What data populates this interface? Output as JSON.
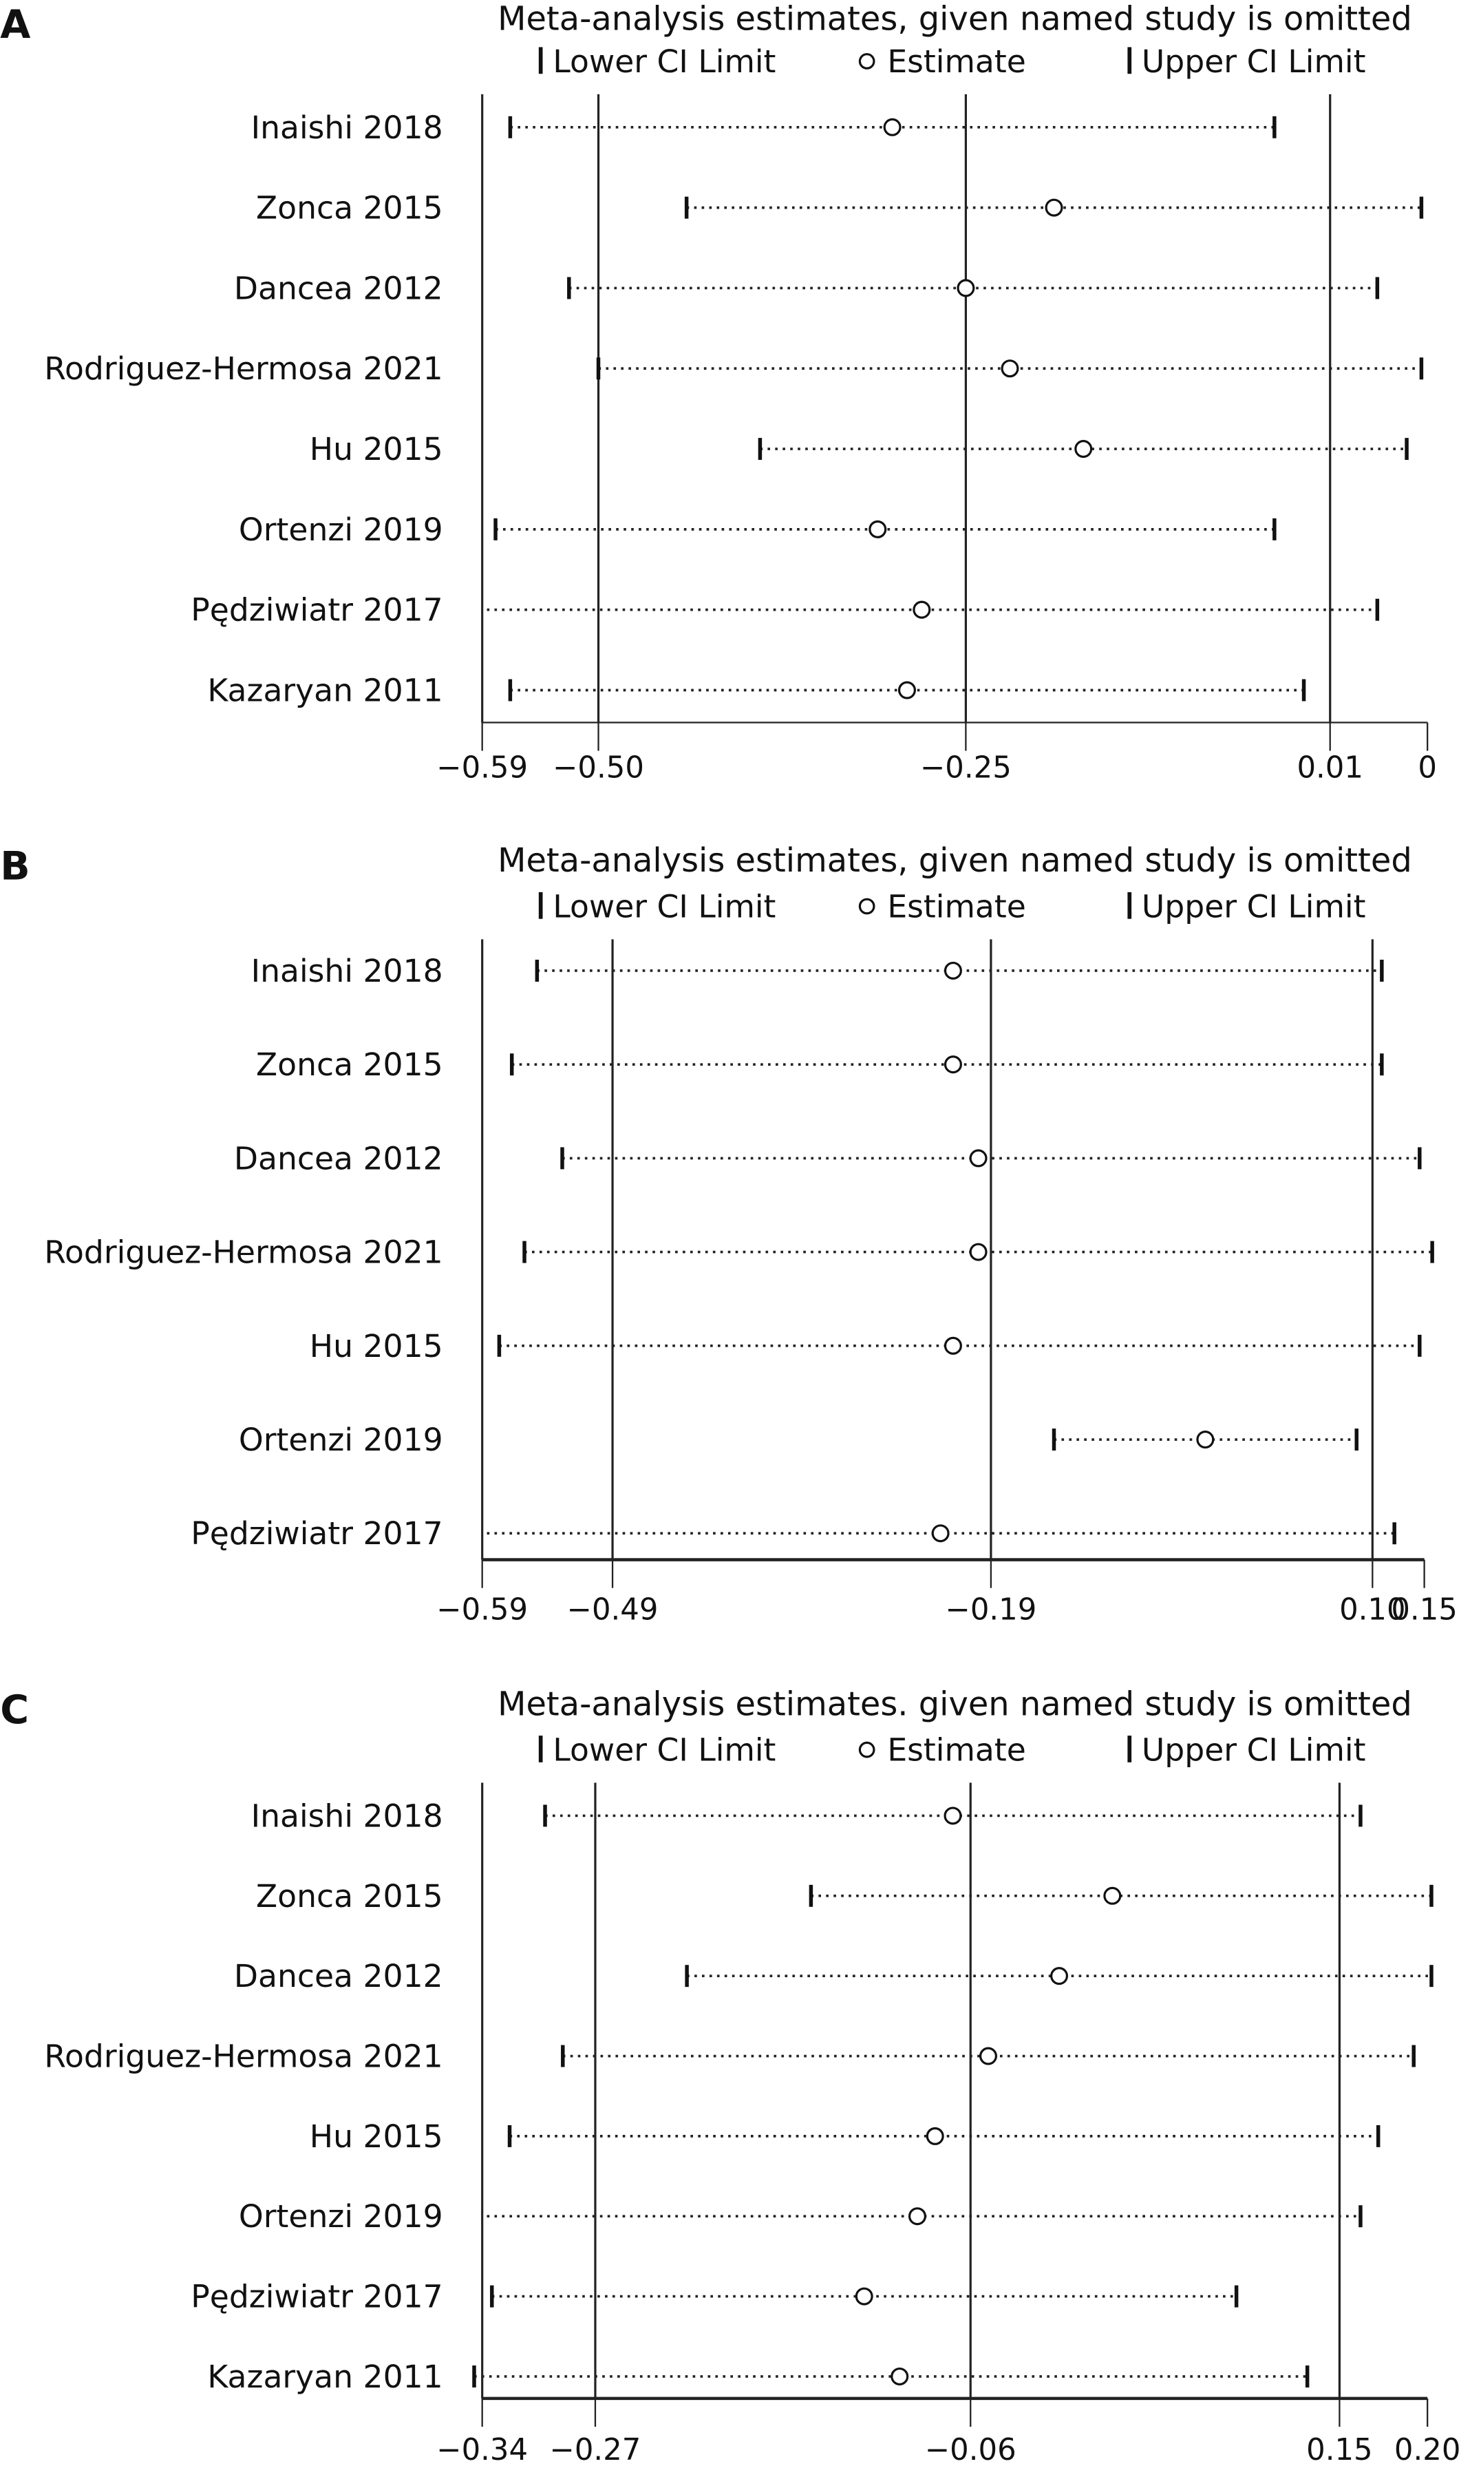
{
  "chart_data": [
    {
      "type": "scatter",
      "panel": "A",
      "title": "Meta-analysis estimates, given named study is omitted",
      "legend": {
        "lower": "Lower CI Limit",
        "estimate": "Estimate",
        "upper": "Upper CI Limit"
      },
      "tick_labels": [
        "−0.59",
        "−0.50",
        "−0.25",
        "0.01",
        "0"
      ],
      "reference_lines": [
        -0.5,
        -0.25,
        0.01
      ],
      "studies": [
        {
          "name": "Inaishi 2018",
          "lower": -0.56,
          "estimate": -0.3,
          "upper": -0.04
        },
        {
          "name": "Zonca 2015",
          "lower": -0.44,
          "estimate": -0.19,
          "upper": 0.06
        },
        {
          "name": "Dancea 2012",
          "lower": -0.52,
          "estimate": -0.25,
          "upper": 0.03
        },
        {
          "name": "Rodriguez-Hermosa 2021",
          "lower": -0.5,
          "estimate": -0.22,
          "upper": 0.06
        },
        {
          "name": "Hu 2015",
          "lower": -0.39,
          "estimate": -0.17,
          "upper": 0.05
        },
        {
          "name": "Ortenzi 2019",
          "lower": -0.57,
          "estimate": -0.31,
          "upper": -0.04
        },
        {
          "name": "Pędziwiatr 2017",
          "lower": null,
          "estimate": -0.28,
          "upper": 0.03
        },
        {
          "name": "Kazaryan 2011",
          "lower": -0.56,
          "estimate": -0.29,
          "upper": -0.02
        }
      ]
    },
    {
      "type": "scatter",
      "panel": "B",
      "title": "Meta-analysis estimates, given named study is omitted",
      "legend": {
        "lower": "Lower CI Limit",
        "estimate": "Estimate",
        "upper": "Upper CI Limit"
      },
      "tick_labels": [
        "−0.59",
        "−0.49",
        "−0.19",
        "0.10",
        "0.15"
      ],
      "reference_lines": [
        -0.49,
        -0.19,
        0.1
      ],
      "studies": [
        {
          "name": "Inaishi 2018",
          "lower": -0.55,
          "estimate": -0.22,
          "upper": 0.12
        },
        {
          "name": "Zonca 2015",
          "lower": -0.57,
          "estimate": -0.22,
          "upper": 0.12
        },
        {
          "name": "Dancea 2012",
          "lower": -0.53,
          "estimate": -0.2,
          "upper": 0.15
        },
        {
          "name": "Rodriguez-Hermosa 2021",
          "lower": -0.56,
          "estimate": -0.2,
          "upper": 0.16
        },
        {
          "name": "Hu 2015",
          "lower": -0.58,
          "estimate": -0.22,
          "upper": 0.15
        },
        {
          "name": "Ortenzi 2019",
          "lower": -0.14,
          "estimate": -0.02,
          "upper": 0.1
        },
        {
          "name": "Pędziwiatr 2017",
          "lower": null,
          "estimate": -0.23,
          "upper": 0.13
        }
      ]
    },
    {
      "type": "scatter",
      "panel": "C",
      "title": "Meta-analysis estimates. given named study is omitted",
      "legend": {
        "lower": "Lower CI Limit",
        "estimate": "Estimate",
        "upper": "Upper CI Limit"
      },
      "tick_labels": [
        "−0.34",
        "−0.27",
        "−0.06",
        "0.15",
        "0.20"
      ],
      "reference_lines": [
        -0.27,
        -0.06,
        0.15
      ],
      "studies": [
        {
          "name": "Inaishi 2018",
          "lower": -0.3,
          "estimate": -0.07,
          "upper": 0.16
        },
        {
          "name": "Zonca 2015",
          "lower": -0.15,
          "estimate": 0.02,
          "upper": 0.2
        },
        {
          "name": "Dancea 2012",
          "lower": -0.22,
          "estimate": -0.01,
          "upper": 0.2
        },
        {
          "name": "Rodriguez-Hermosa 2021",
          "lower": -0.29,
          "estimate": -0.05,
          "upper": 0.19
        },
        {
          "name": "Hu 2015",
          "lower": -0.32,
          "estimate": -0.08,
          "upper": 0.17
        },
        {
          "name": "Ortenzi 2019",
          "lower": null,
          "estimate": -0.09,
          "upper": 0.16
        },
        {
          "name": "Pędziwiatr 2017",
          "lower": -0.33,
          "estimate": -0.12,
          "upper": 0.09
        },
        {
          "name": "Kazaryan 2011",
          "lower": -0.34,
          "estimate": -0.1,
          "upper": 0.13
        }
      ]
    }
  ]
}
